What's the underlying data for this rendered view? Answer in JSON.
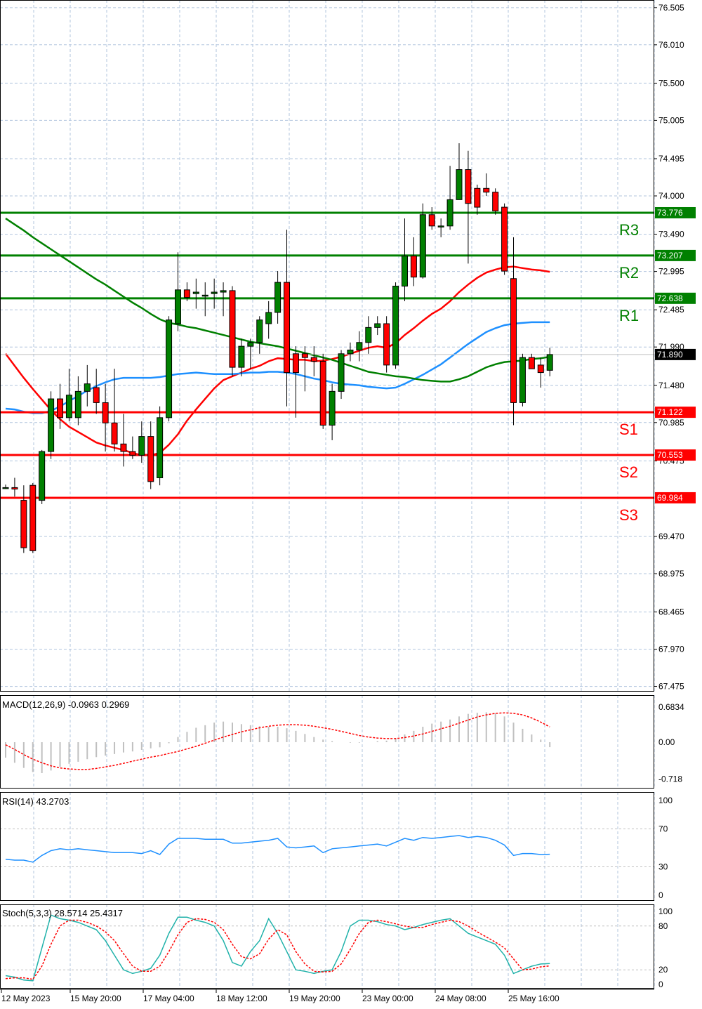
{
  "chart_data": [
    {
      "type": "candlestick",
      "title": "",
      "ylim": [
        67.2,
        76.6
      ],
      "y_ticks": [
        "76.505",
        "76.010",
        "75.500",
        "75.005",
        "74.495",
        "74.000",
        "73.490",
        "72.995",
        "72.485",
        "71.990",
        "71.480",
        "70.985",
        "70.475",
        "69.470",
        "68.975",
        "68.465",
        "67.970",
        "67.475"
      ],
      "x_labels": [
        "12 May 2023",
        "15 May 20:00",
        "17 May 04:00",
        "18 May 12:00",
        "19 May 20:00",
        "23 May 00:00",
        "24 May 08:00",
        "25 May 16:00"
      ],
      "current_price": "71.890",
      "candles": [
        {
          "o": 70.12,
          "h": 70.16,
          "l": 70.1,
          "c": 70.12
        },
        {
          "o": 70.12,
          "h": 70.25,
          "l": 70.0,
          "c": 70.1
        },
        {
          "o": 69.95,
          "h": 70.15,
          "l": 69.25,
          "c": 69.32
        },
        {
          "o": 70.15,
          "h": 70.18,
          "l": 69.25,
          "c": 69.28
        },
        {
          "o": 69.95,
          "h": 70.62,
          "l": 69.9,
          "c": 70.6
        },
        {
          "o": 70.6,
          "h": 71.4,
          "l": 70.5,
          "c": 71.3
        },
        {
          "o": 71.3,
          "h": 71.5,
          "l": 70.9,
          "c": 71.05
        },
        {
          "o": 71.05,
          "h": 71.7,
          "l": 71.0,
          "c": 71.35
        },
        {
          "o": 71.05,
          "h": 71.6,
          "l": 70.95,
          "c": 71.4
        },
        {
          "o": 71.4,
          "h": 71.75,
          "l": 71.2,
          "c": 71.5
        },
        {
          "o": 71.45,
          "h": 71.7,
          "l": 71.1,
          "c": 71.25
        },
        {
          "o": 71.25,
          "h": 71.5,
          "l": 70.6,
          "c": 70.98
        },
        {
          "o": 70.98,
          "h": 71.7,
          "l": 70.6,
          "c": 70.7
        },
        {
          "o": 70.7,
          "h": 71.1,
          "l": 70.4,
          "c": 70.6
        },
        {
          "o": 70.6,
          "h": 70.8,
          "l": 70.5,
          "c": 70.55
        },
        {
          "o": 70.55,
          "h": 71.0,
          "l": 70.45,
          "c": 70.8
        },
        {
          "o": 70.8,
          "h": 71.0,
          "l": 70.1,
          "c": 70.2
        },
        {
          "o": 70.25,
          "h": 71.2,
          "l": 70.15,
          "c": 71.05
        },
        {
          "o": 71.05,
          "h": 72.4,
          "l": 71.0,
          "c": 72.35
        },
        {
          "o": 72.3,
          "h": 73.25,
          "l": 72.2,
          "c": 72.75
        },
        {
          "o": 72.75,
          "h": 72.85,
          "l": 72.6,
          "c": 72.65
        },
        {
          "o": 72.7,
          "h": 72.9,
          "l": 72.5,
          "c": 72.72
        },
        {
          "o": 72.68,
          "h": 72.85,
          "l": 72.4,
          "c": 72.68
        },
        {
          "o": 72.7,
          "h": 72.9,
          "l": 72.5,
          "c": 72.72
        },
        {
          "o": 72.72,
          "h": 72.85,
          "l": 72.4,
          "c": 72.74
        },
        {
          "o": 72.74,
          "h": 72.8,
          "l": 71.6,
          "c": 71.72
        },
        {
          "o": 71.72,
          "h": 72.1,
          "l": 71.6,
          "c": 72.0
        },
        {
          "o": 72.0,
          "h": 72.1,
          "l": 71.7,
          "c": 72.05
        },
        {
          "o": 72.05,
          "h": 72.4,
          "l": 71.9,
          "c": 72.35
        },
        {
          "o": 72.3,
          "h": 72.6,
          "l": 72.1,
          "c": 72.45
        },
        {
          "o": 72.45,
          "h": 73.0,
          "l": 72.3,
          "c": 72.85
        },
        {
          "o": 72.85,
          "h": 73.55,
          "l": 71.2,
          "c": 71.65
        },
        {
          "o": 71.9,
          "h": 72.0,
          "l": 71.05,
          "c": 71.65
        },
        {
          "o": 71.9,
          "h": 72.0,
          "l": 71.4,
          "c": 71.85
        },
        {
          "o": 71.85,
          "h": 72.0,
          "l": 71.6,
          "c": 71.8
        },
        {
          "o": 71.8,
          "h": 71.9,
          "l": 70.9,
          "c": 70.95
        },
        {
          "o": 70.95,
          "h": 71.5,
          "l": 70.75,
          "c": 71.4
        },
        {
          "o": 71.4,
          "h": 71.95,
          "l": 71.3,
          "c": 71.9
        },
        {
          "o": 71.9,
          "h": 72.05,
          "l": 71.8,
          "c": 71.95
        },
        {
          "o": 71.95,
          "h": 72.2,
          "l": 71.8,
          "c": 72.05
        },
        {
          "o": 72.05,
          "h": 72.4,
          "l": 71.9,
          "c": 72.25
        },
        {
          "o": 72.25,
          "h": 72.4,
          "l": 72.15,
          "c": 72.3
        },
        {
          "o": 72.3,
          "h": 72.4,
          "l": 71.65,
          "c": 71.75
        },
        {
          "o": 71.75,
          "h": 72.85,
          "l": 71.7,
          "c": 72.8
        },
        {
          "o": 72.8,
          "h": 73.7,
          "l": 72.6,
          "c": 73.2
        },
        {
          "o": 73.2,
          "h": 73.45,
          "l": 72.8,
          "c": 72.92
        },
        {
          "o": 72.92,
          "h": 73.9,
          "l": 72.9,
          "c": 73.75
        },
        {
          "o": 73.75,
          "h": 73.85,
          "l": 73.55,
          "c": 73.6
        },
        {
          "o": 73.6,
          "h": 73.7,
          "l": 73.45,
          "c": 73.6
        },
        {
          "o": 73.6,
          "h": 74.4,
          "l": 73.55,
          "c": 73.95
        },
        {
          "o": 73.95,
          "h": 74.7,
          "l": 73.95,
          "c": 74.35
        },
        {
          "o": 74.35,
          "h": 74.6,
          "l": 73.1,
          "c": 73.9
        },
        {
          "o": 74.1,
          "h": 74.15,
          "l": 73.75,
          "c": 73.85
        },
        {
          "o": 74.1,
          "h": 74.3,
          "l": 74.0,
          "c": 74.05
        },
        {
          "o": 74.05,
          "h": 74.1,
          "l": 73.75,
          "c": 73.8
        },
        {
          "o": 73.85,
          "h": 73.9,
          "l": 72.95,
          "c": 73.0
        },
        {
          "o": 72.9,
          "h": 73.45,
          "l": 70.95,
          "c": 71.25
        },
        {
          "o": 71.25,
          "h": 71.9,
          "l": 71.2,
          "c": 71.85
        },
        {
          "o": 71.85,
          "h": 71.9,
          "l": 71.7,
          "c": 71.7
        },
        {
          "o": 71.75,
          "h": 71.85,
          "l": 71.45,
          "c": 71.65
        },
        {
          "o": 71.68,
          "h": 71.98,
          "l": 71.6,
          "c": 71.89
        }
      ],
      "series": [
        {
          "color": "#ff0000",
          "values": [
            71.9,
            71.74,
            71.58,
            71.43,
            71.29,
            71.15,
            71.03,
            70.93,
            70.86,
            70.79,
            70.72,
            70.68,
            70.65,
            70.62,
            70.58,
            70.55,
            70.55,
            70.58,
            70.69,
            70.83,
            71.01,
            71.16,
            71.3,
            71.44,
            71.55,
            71.6,
            71.65,
            71.7,
            71.74,
            71.8,
            71.84,
            71.83,
            71.82,
            71.82,
            71.8,
            71.81,
            71.83,
            71.86,
            71.9,
            71.94,
            71.98,
            72.0,
            71.98,
            72.04,
            72.15,
            72.24,
            72.34,
            72.43,
            72.5,
            72.6,
            72.72,
            72.82,
            72.91,
            72.98,
            73.02,
            73.05,
            73.06,
            73.04,
            73.02,
            73.01,
            72.99
          ]
        },
        {
          "color": "#1e90ff",
          "values": [
            71.17,
            71.16,
            71.13,
            71.11,
            71.11,
            71.14,
            71.2,
            71.27,
            71.34,
            71.41,
            71.47,
            71.52,
            71.56,
            71.58,
            71.58,
            71.58,
            71.58,
            71.59,
            71.61,
            71.63,
            71.64,
            71.65,
            71.64,
            71.63,
            71.63,
            71.63,
            71.64,
            71.65,
            71.65,
            71.66,
            71.66,
            71.65,
            71.63,
            71.6,
            71.57,
            71.55,
            71.52,
            71.5,
            71.49,
            71.48,
            71.46,
            71.45,
            71.44,
            71.45,
            71.5,
            71.56,
            71.62,
            71.69,
            71.76,
            71.85,
            71.94,
            72.03,
            72.11,
            72.19,
            72.24,
            72.28,
            72.3,
            72.31,
            72.32,
            72.32,
            72.32
          ]
        },
        {
          "color": "#008000",
          "values": [
            73.7,
            73.62,
            73.54,
            73.45,
            73.37,
            73.29,
            73.21,
            73.13,
            73.05,
            72.97,
            72.89,
            72.82,
            72.74,
            72.66,
            72.58,
            72.51,
            72.43,
            72.36,
            72.31,
            72.29,
            72.26,
            72.24,
            72.21,
            72.18,
            72.15,
            72.12,
            72.09,
            72.06,
            72.04,
            72.02,
            72.0,
            71.97,
            71.94,
            71.91,
            71.88,
            71.85,
            71.82,
            71.78,
            71.74,
            71.7,
            71.66,
            71.64,
            71.62,
            71.6,
            71.59,
            71.57,
            71.55,
            71.54,
            71.53,
            71.53,
            71.56,
            71.6,
            71.66,
            71.72,
            71.76,
            71.79,
            71.8,
            71.81,
            71.83,
            71.84,
            71.86
          ]
        }
      ],
      "levels": [
        {
          "label": "R3",
          "value": "73.776",
          "color": "#008000"
        },
        {
          "label": "R2",
          "value": "73.207",
          "color": "#008000"
        },
        {
          "label": "R1",
          "value": "72.638",
          "color": "#008000"
        },
        {
          "label": "S1",
          "value": "71.122",
          "color": "#ff0000"
        },
        {
          "label": "S2",
          "value": "70.553",
          "color": "#ff0000"
        },
        {
          "label": "S3",
          "value": "69.984",
          "color": "#ff0000"
        }
      ]
    },
    {
      "type": "macd",
      "label": "MACD(12,26,9) -0.0963 0.2969",
      "ylim": [
        -0.9,
        0.75
      ],
      "y_ticks": [
        "0.6834",
        "0.00",
        "-0.718"
      ],
      "histogram": [
        -0.3,
        -0.4,
        -0.5,
        -0.58,
        -0.6,
        -0.55,
        -0.48,
        -0.42,
        -0.38,
        -0.33,
        -0.29,
        -0.26,
        -0.23,
        -0.2,
        -0.18,
        -0.15,
        -0.12,
        -0.1,
        -0.02,
        0.1,
        0.2,
        0.28,
        0.33,
        0.38,
        0.4,
        0.38,
        0.35,
        0.33,
        0.31,
        0.3,
        0.3,
        0.27,
        0.22,
        0.16,
        0.1,
        0.05,
        0.02,
        0.0,
        -0.01,
        -0.01,
        0.0,
        0.02,
        0.03,
        0.08,
        0.15,
        0.22,
        0.3,
        0.36,
        0.4,
        0.44,
        0.5,
        0.55,
        0.57,
        0.58,
        0.56,
        0.5,
        0.38,
        0.26,
        0.15,
        0.05,
        -0.0963
      ],
      "signal": [
        -0.05,
        -0.14,
        -0.24,
        -0.33,
        -0.4,
        -0.46,
        -0.5,
        -0.52,
        -0.53,
        -0.53,
        -0.51,
        -0.48,
        -0.45,
        -0.41,
        -0.37,
        -0.33,
        -0.29,
        -0.26,
        -0.22,
        -0.18,
        -0.13,
        -0.08,
        -0.02,
        0.04,
        0.1,
        0.15,
        0.2,
        0.24,
        0.28,
        0.31,
        0.33,
        0.34,
        0.34,
        0.33,
        0.31,
        0.28,
        0.25,
        0.21,
        0.17,
        0.13,
        0.1,
        0.08,
        0.07,
        0.07,
        0.09,
        0.12,
        0.16,
        0.21,
        0.26,
        0.31,
        0.37,
        0.43,
        0.49,
        0.53,
        0.56,
        0.57,
        0.56,
        0.53,
        0.47,
        0.39,
        0.2969
      ]
    },
    {
      "type": "line",
      "label": "RSI(14) 43.2703",
      "ylim": [
        0,
        100
      ],
      "y_ticks": [
        "100",
        "70",
        "30",
        "0"
      ],
      "values": [
        38,
        37,
        37,
        35,
        42,
        47,
        49,
        48,
        49,
        48,
        47,
        46,
        45,
        45,
        45,
        44,
        47,
        43,
        54,
        60,
        60,
        60,
        59,
        59,
        59,
        55,
        55,
        56,
        57,
        58,
        60,
        51,
        50,
        51,
        52,
        45,
        49,
        50,
        51,
        52,
        53,
        54,
        52,
        56,
        60,
        58,
        61,
        60,
        61,
        62,
        63,
        61,
        62,
        61,
        58,
        53,
        42,
        44,
        44,
        43,
        43.2703
      ]
    },
    {
      "type": "line",
      "label": "Stoch(5,3,3) 28.5714 25.4317",
      "ylim": [
        0,
        100
      ],
      "y_ticks": [
        "100",
        "80",
        "20",
        "0"
      ],
      "main": [
        12,
        10,
        6,
        5,
        50,
        95,
        90,
        88,
        85,
        80,
        75,
        60,
        40,
        20,
        15,
        18,
        22,
        40,
        70,
        92,
        92,
        88,
        85,
        80,
        60,
        30,
        25,
        45,
        60,
        90,
        70,
        45,
        20,
        18,
        15,
        18,
        20,
        45,
        80,
        88,
        88,
        86,
        82,
        80,
        75,
        78,
        82,
        85,
        88,
        90,
        80,
        70,
        65,
        60,
        55,
        40,
        15,
        20,
        25,
        28,
        28.5714
      ],
      "signal": [
        8,
        9,
        9,
        7,
        25,
        55,
        80,
        88,
        88,
        85,
        80,
        72,
        60,
        42,
        25,
        18,
        18,
        25,
        45,
        68,
        85,
        90,
        89,
        85,
        75,
        55,
        38,
        35,
        42,
        62,
        75,
        68,
        45,
        28,
        18,
        17,
        18,
        28,
        48,
        70,
        85,
        88,
        86,
        83,
        80,
        78,
        78,
        82,
        85,
        88,
        86,
        80,
        72,
        65,
        58,
        50,
        35,
        20,
        21,
        24,
        25.4317
      ]
    }
  ]
}
